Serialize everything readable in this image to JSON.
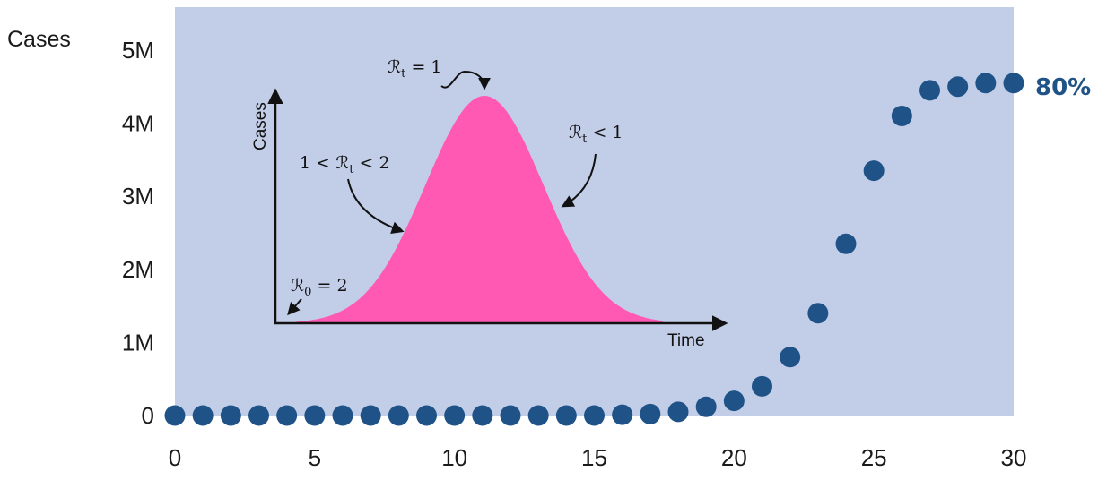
{
  "chart_data": {
    "type": "scatter",
    "ylabel": "Cases",
    "x_ticks": [
      "0",
      "5",
      "10",
      "15",
      "20",
      "25",
      "30"
    ],
    "y_ticks": [
      "0",
      "1M",
      "2M",
      "3M",
      "4M",
      "5M"
    ],
    "xlim": [
      0,
      30
    ],
    "ylim": [
      0,
      5000000
    ],
    "grid": false,
    "x": [
      0,
      1,
      2,
      3,
      4,
      5,
      6,
      7,
      8,
      9,
      10,
      11,
      12,
      13,
      14,
      15,
      16,
      17,
      18,
      19,
      20,
      21,
      22,
      23,
      24,
      25,
      26,
      27,
      28,
      29,
      30
    ],
    "values": [
      0,
      0,
      0,
      0,
      0,
      0,
      0,
      0,
      0,
      0,
      0,
      0,
      0,
      0,
      0,
      0,
      10000,
      20000,
      50000,
      120000,
      200000,
      400000,
      800000,
      1400000,
      2350000,
      3350000,
      4100000,
      4450000,
      4500000,
      4550000,
      4550000
    ],
    "end_label": "80%",
    "colors": {
      "plot_background": "#c2cde8",
      "points": "#1f5388",
      "end_label": "#1f5388",
      "inset_curve": "#ff59b4"
    },
    "inset": {
      "type": "area",
      "xlabel": "Time",
      "ylabel": "Cases",
      "annotations": {
        "r0": {
          "base": "ℛ",
          "sub": "0",
          "rest": " = 2"
        },
        "growing": {
          "prefix": "1 < ",
          "base": "ℛ",
          "sub": "t",
          "rest": " < 2"
        },
        "peak": {
          "base": "ℛ",
          "sub": "t",
          "rest": " = 1"
        },
        "declining": {
          "base": "ℛ",
          "sub": "t",
          "rest": " < 1"
        }
      }
    }
  }
}
